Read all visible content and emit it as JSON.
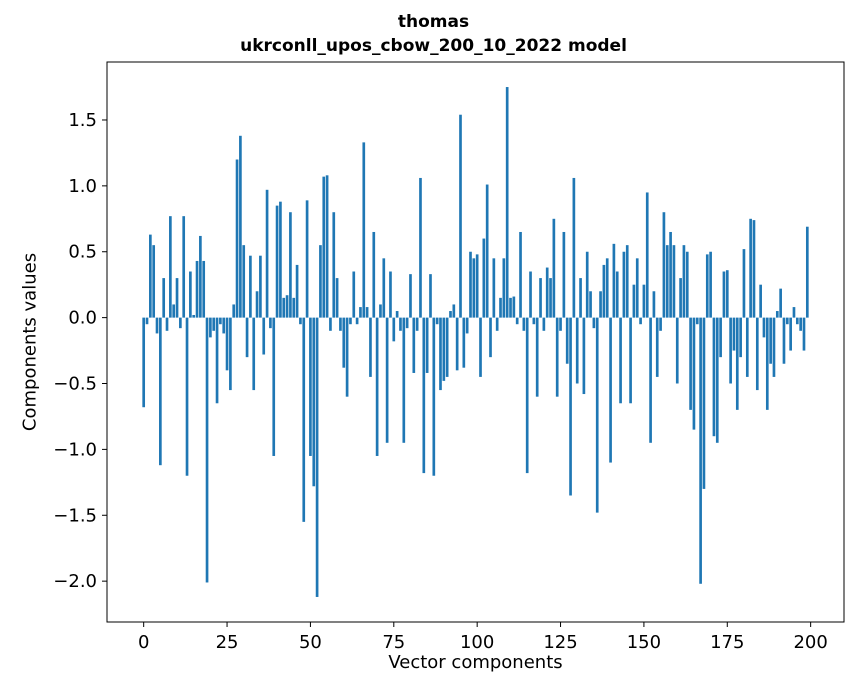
{
  "chart_data": {
    "type": "bar",
    "title_line1": "thomas",
    "title_line2": "ukrconll_upos_cbow_200_10_2022 model",
    "xlabel": "Vector components",
    "ylabel": "Components values",
    "bar_color": "#1f77b4",
    "xlim": [
      -11,
      210
    ],
    "ylim": [
      -2.31,
      1.94
    ],
    "xticks": [
      0,
      25,
      50,
      75,
      100,
      125,
      150,
      175,
      200
    ],
    "yticks": [
      1.5,
      1.0,
      0.5,
      0.0,
      -0.5,
      -1.0,
      -1.5,
      -2.0
    ],
    "grid": false,
    "legend": "none",
    "values": [
      -0.68,
      -0.05,
      0.63,
      0.55,
      -0.12,
      -1.12,
      0.3,
      -0.1,
      0.77,
      0.1,
      0.3,
      -0.08,
      0.77,
      -1.2,
      0.35,
      0.02,
      0.43,
      0.62,
      0.43,
      -2.01,
      -0.15,
      -0.1,
      -0.65,
      -0.05,
      -0.12,
      -0.4,
      -0.55,
      0.1,
      1.2,
      1.38,
      0.55,
      -0.3,
      0.47,
      -0.55,
      0.2,
      0.47,
      -0.28,
      0.97,
      -0.08,
      -1.05,
      0.85,
      0.88,
      0.15,
      0.17,
      0.8,
      0.15,
      0.4,
      -0.05,
      -1.55,
      0.89,
      -1.05,
      -1.28,
      -2.12,
      0.55,
      1.07,
      1.08,
      -0.1,
      0.8,
      0.3,
      -0.1,
      -0.38,
      -0.6,
      -0.05,
      0.35,
      -0.05,
      0.08,
      1.33,
      0.08,
      -0.45,
      0.65,
      -1.05,
      0.1,
      0.45,
      -0.95,
      0.35,
      -0.18,
      0.05,
      -0.1,
      -0.95,
      -0.08,
      0.33,
      -0.42,
      -0.1,
      1.06,
      -1.18,
      -0.42,
      0.33,
      -1.2,
      -0.05,
      -0.55,
      -0.48,
      -0.45,
      0.05,
      0.1,
      -0.4,
      1.54,
      -0.38,
      -0.12,
      0.5,
      0.45,
      0.48,
      -0.45,
      0.6,
      1.01,
      -0.3,
      0.45,
      -0.1,
      0.15,
      0.45,
      1.75,
      0.15,
      0.16,
      -0.05,
      0.65,
      -0.1,
      -1.18,
      0.35,
      -0.05,
      -0.6,
      0.3,
      -0.1,
      0.38,
      0.3,
      0.75,
      -0.6,
      -0.1,
      0.65,
      -0.35,
      -1.35,
      1.06,
      -0.5,
      0.3,
      -0.58,
      0.5,
      0.2,
      -0.08,
      -1.48,
      0.2,
      0.4,
      0.45,
      -1.1,
      0.56,
      0.35,
      -0.65,
      0.5,
      0.55,
      -0.65,
      0.25,
      0.45,
      -0.05,
      0.25,
      0.95,
      -0.95,
      0.2,
      -0.45,
      -0.1,
      0.8,
      0.55,
      0.65,
      0.55,
      -0.5,
      0.3,
      0.55,
      0.5,
      -0.7,
      -0.85,
      -0.05,
      -2.02,
      -1.3,
      0.48,
      0.5,
      -0.9,
      -0.95,
      -0.3,
      0.35,
      0.36,
      -0.5,
      -0.25,
      -0.7,
      -0.3,
      0.52,
      -0.45,
      0.75,
      0.74,
      -0.55,
      0.25,
      -0.15,
      -0.7,
      -0.35,
      -0.45,
      0.05,
      0.22,
      -0.35,
      -0.05,
      -0.25,
      0.08,
      -0.05,
      -0.1,
      -0.25,
      0.69
    ]
  }
}
